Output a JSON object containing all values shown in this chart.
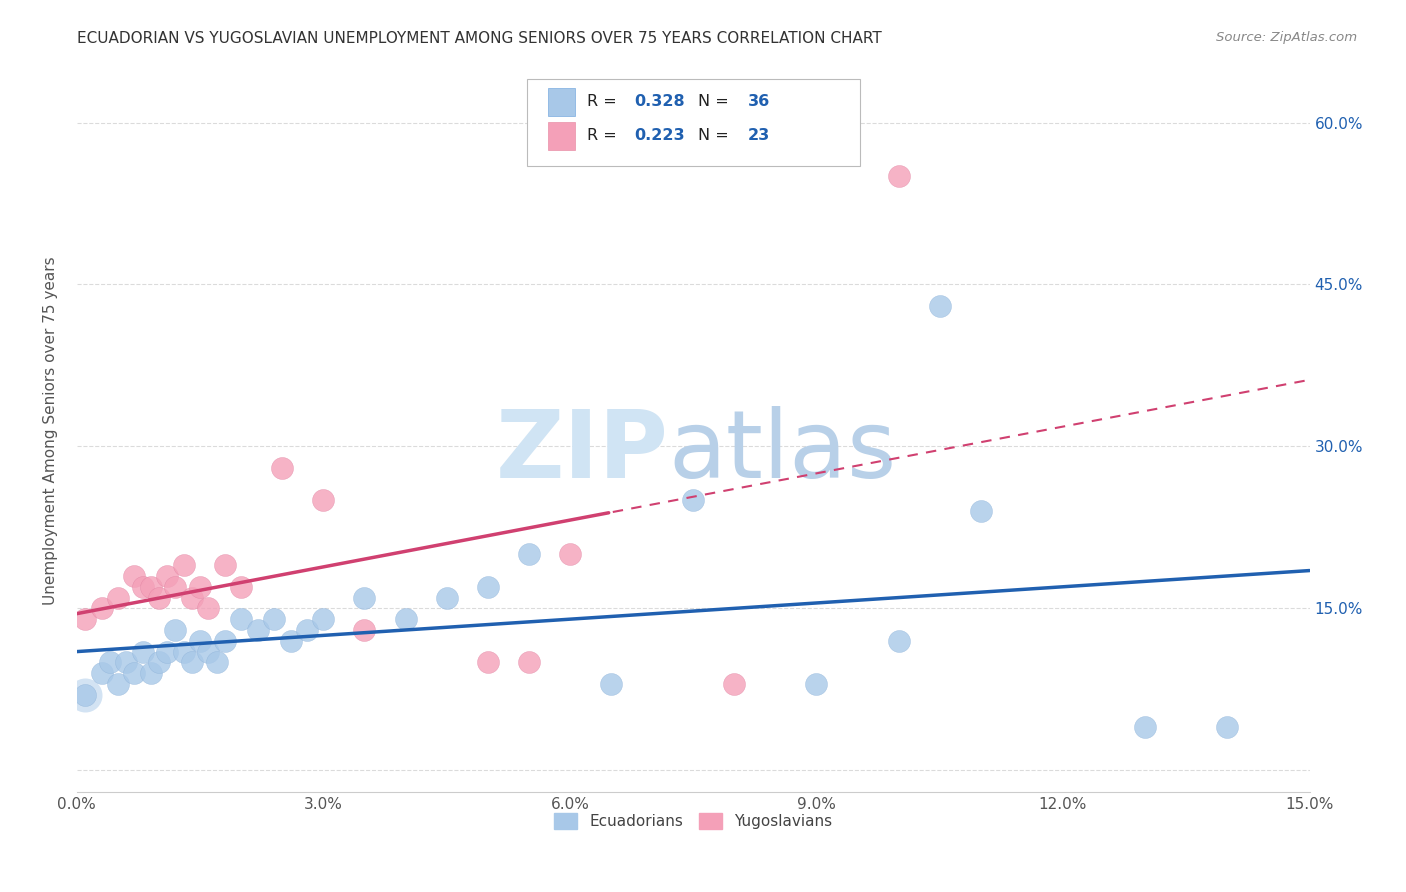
{
  "title": "ECUADORIAN VS YUGOSLAVIAN UNEMPLOYMENT AMONG SENIORS OVER 75 YEARS CORRELATION CHART",
  "source": "Source: ZipAtlas.com",
  "ylabel": "Unemployment Among Seniors over 75 years",
  "xlim": [
    0.0,
    0.15
  ],
  "ylim": [
    -0.02,
    0.65
  ],
  "xticks": [
    0.0,
    0.03,
    0.06,
    0.09,
    0.12,
    0.15
  ],
  "yticks": [
    0.0,
    0.15,
    0.3,
    0.45,
    0.6
  ],
  "xtick_labels": [
    "0.0%",
    "3.0%",
    "6.0%",
    "9.0%",
    "12.0%",
    "15.0%"
  ],
  "ytick_labels_right": [
    "15.0%",
    "30.0%",
    "45.0%",
    "60.0%"
  ],
  "ecuador_R": "0.328",
  "ecuador_N": "36",
  "yugoslav_R": "0.223",
  "yugoslav_N": "23",
  "ecuador_color": "#a8c8e8",
  "yugoslav_color": "#f4a0b8",
  "trendline_ecuador_color": "#2060b0",
  "trendline_yugoslav_color": "#d04070",
  "legend_text_color": "#2060b0",
  "watermark_zip_color": "#d0e4f4",
  "watermark_atlas_color": "#b8d0e8",
  "ecuador_x": [
    0.001,
    0.003,
    0.004,
    0.005,
    0.006,
    0.007,
    0.008,
    0.009,
    0.01,
    0.011,
    0.012,
    0.013,
    0.014,
    0.015,
    0.016,
    0.017,
    0.018,
    0.02,
    0.022,
    0.024,
    0.026,
    0.028,
    0.03,
    0.035,
    0.04,
    0.045,
    0.05,
    0.055,
    0.065,
    0.075,
    0.09,
    0.1,
    0.105,
    0.11,
    0.13,
    0.14
  ],
  "ecuador_y": [
    0.07,
    0.09,
    0.1,
    0.08,
    0.1,
    0.09,
    0.11,
    0.09,
    0.1,
    0.11,
    0.13,
    0.11,
    0.1,
    0.12,
    0.11,
    0.1,
    0.12,
    0.14,
    0.13,
    0.14,
    0.12,
    0.13,
    0.14,
    0.16,
    0.14,
    0.16,
    0.17,
    0.2,
    0.08,
    0.25,
    0.08,
    0.12,
    0.43,
    0.24,
    0.04,
    0.04
  ],
  "yugoslav_x": [
    0.001,
    0.003,
    0.005,
    0.007,
    0.008,
    0.009,
    0.01,
    0.011,
    0.012,
    0.013,
    0.014,
    0.015,
    0.016,
    0.018,
    0.02,
    0.025,
    0.03,
    0.035,
    0.05,
    0.055,
    0.06,
    0.08,
    0.1
  ],
  "yugoslav_y": [
    0.14,
    0.15,
    0.16,
    0.18,
    0.17,
    0.17,
    0.16,
    0.18,
    0.17,
    0.19,
    0.16,
    0.17,
    0.15,
    0.19,
    0.17,
    0.28,
    0.25,
    0.13,
    0.1,
    0.1,
    0.2,
    0.08,
    0.55
  ],
  "background_color": "#ffffff",
  "grid_color": "#d8d8d8"
}
